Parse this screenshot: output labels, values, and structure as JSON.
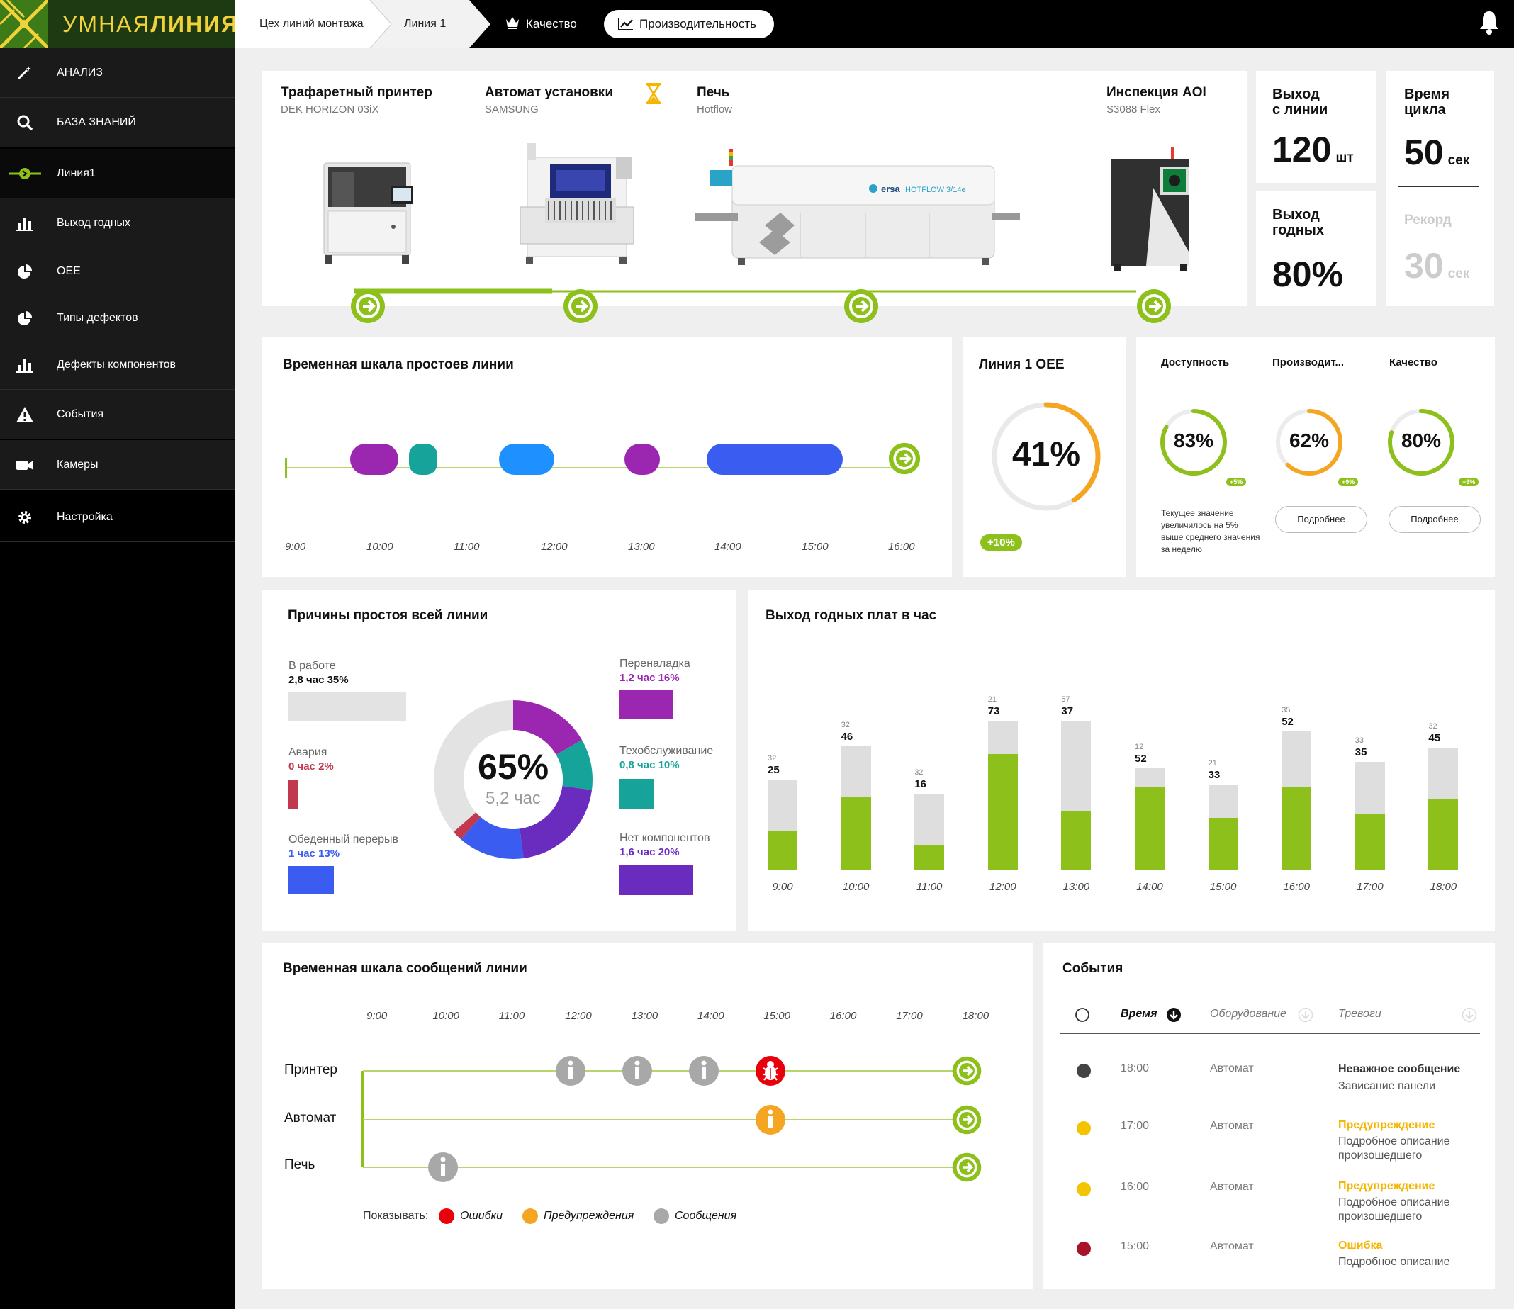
{
  "app": {
    "logo_plain": "УМНАЯ",
    "logo_bold": "ЛИНИЯ"
  },
  "breadcrumb": {
    "shop": "Цех линий монтажа",
    "line": "Линия 1"
  },
  "topnav": {
    "quality": "Качество",
    "performance": "Производительность"
  },
  "sidebar": {
    "items": [
      {
        "label": "АНАЛИЗ",
        "icon": "magic-wand-icon"
      },
      {
        "label": "БАЗА ЗНАНИЙ",
        "icon": "search-icon"
      },
      {
        "label": "Линия1",
        "icon": "line-arrow-icon"
      },
      {
        "label": "Выход годных",
        "icon": "bar-chart-icon"
      },
      {
        "label": "OEE",
        "icon": "pie-chart-icon"
      },
      {
        "label": "Типы дефектов",
        "icon": "pie-chart-icon"
      },
      {
        "label": "Дефекты компонентов",
        "icon": "bar-chart-icon"
      },
      {
        "label": "События",
        "icon": "warning-icon"
      },
      {
        "label": "Камеры",
        "icon": "camera-icon"
      },
      {
        "label": "Настройка",
        "icon": "gear-icon"
      }
    ]
  },
  "line_machines": [
    {
      "name": "Трафаретный принтер",
      "model": "DEK HORIZON 03iX"
    },
    {
      "name": "Автомат установки",
      "model": "SAMSUNG"
    },
    {
      "name": "Печь",
      "model": "Hotflow"
    },
    {
      "name": "Инспекция AOI",
      "model": "S3088 Flex"
    }
  ],
  "oven_brand": {
    "brand": "ersa",
    "model": "HOTFLOW 3/14e"
  },
  "kpi": {
    "line_output_label_1": "Выход",
    "line_output_label_2": "с линии",
    "line_output_value": "120",
    "line_output_unit": "шт",
    "cycle_label_1": "Время",
    "cycle_label_2": "цикла",
    "cycle_value": "50",
    "cycle_unit": "сек",
    "yield_label_1": "Выход",
    "yield_label_2": "годных",
    "yield_value": "80%",
    "record_label": "Рекорд",
    "record_value": "30",
    "record_unit": "сек"
  },
  "downtime_timeline": {
    "title": "Временная шкала простоев линии",
    "times": [
      "9:00",
      "10:00",
      "11:00",
      "12:00",
      "13:00",
      "14:00",
      "15:00",
      "16:00"
    ],
    "segments": [
      {
        "color": "#9b27b0"
      },
      {
        "color": "#16a49a"
      },
      {
        "color": "#1e90ff"
      },
      {
        "color": "#9b27b0"
      },
      {
        "color": "#3b5cf0"
      }
    ]
  },
  "oee": {
    "title": "Линия 1 OEE",
    "value": "41%",
    "fraction": 0.41,
    "delta": "+10%"
  },
  "oee_parts": {
    "items": [
      {
        "label": "Доступность",
        "value": "83%",
        "fraction": 0.83,
        "color": "#8dc01b",
        "delta": "+5%"
      },
      {
        "label": "Производит...",
        "value": "62%",
        "fraction": 0.62,
        "color": "#f4a623",
        "delta": "+9%"
      },
      {
        "label": "Качество",
        "value": "80%",
        "fraction": 0.8,
        "color": "#8dc01b",
        "delta": "+9%"
      }
    ],
    "note": "Текущее значение увеличилось на 5% выше среднего значения за неделю",
    "more_button": "Подробнее"
  },
  "downtime_reasons": {
    "title": "Причины простоя всей линии",
    "center_value": "65%",
    "center_sub": "5,2 час",
    "items": [
      {
        "label": "В работе",
        "value": "2,8 час 35%",
        "color": "#e3e3e3",
        "value_color": "#111",
        "fraction": 0.35
      },
      {
        "label": "Авария",
        "value": "0 час 2%",
        "color": "#c0394f",
        "value_color": "#c0394f",
        "fraction": 0.02
      },
      {
        "label": "Обеденный перерыв",
        "value": "1 час 13%",
        "color": "#3b5cf0",
        "value_color": "#3b5cf0",
        "fraction": 0.13
      },
      {
        "label": "Переналадка",
        "value": "1,2 час 16%",
        "color": "#9b27b0",
        "value_color": "#9b27b0",
        "fraction": 0.16
      },
      {
        "label": "Техобслуживание",
        "value": "0,8 час 10%",
        "color": "#16a49a",
        "value_color": "#16a49a",
        "fraction": 0.1
      },
      {
        "label": "Нет компонентов",
        "value": "1,6 час 20%",
        "color": "#6a2bbf",
        "value_color": "#6a2bbf",
        "fraction": 0.2
      }
    ]
  },
  "chart_data": {
    "type": "bar",
    "title": "Выход годных плат в час",
    "categories": [
      "9:00",
      "10:00",
      "11:00",
      "12:00",
      "13:00",
      "14:00",
      "15:00",
      "16:00",
      "17:00",
      "18:00"
    ],
    "series": [
      {
        "values": [
          25,
          46,
          16,
          73,
          37,
          52,
          33,
          52,
          35,
          45
        ]
      },
      {
        "values": [
          32,
          32,
          32,
          21,
          57,
          12,
          21,
          35,
          33,
          32
        ]
      }
    ]
  },
  "messages_timeline": {
    "title": "Временная шкала сообщений линии",
    "times": [
      "9:00",
      "10:00",
      "11:00",
      "12:00",
      "13:00",
      "14:00",
      "15:00",
      "16:00",
      "17:00",
      "18:00"
    ],
    "rows": [
      "Принтер",
      "Автомат",
      "Печь"
    ],
    "show_label": "Показывать:",
    "legend": [
      {
        "label": "Ошибки",
        "color": "#e8000b"
      },
      {
        "label": "Предупреждения",
        "color": "#f4a623"
      },
      {
        "label": "Сообщения",
        "color": "#a8a8a8"
      }
    ]
  },
  "events": {
    "title": "События",
    "columns": [
      "Время",
      "Оборудование",
      "Тревоги"
    ],
    "rows": [
      {
        "dot": "#444444",
        "time": "18:00",
        "equipment": "Автомат",
        "title": "Неважное сообщение",
        "title_color": "#333333",
        "desc": "Зависание панели"
      },
      {
        "dot": "#f4c400",
        "time": "17:00",
        "equipment": "Автомат",
        "title": "Предупреждение",
        "title_color": "#f4b400",
        "desc": "Подробное описание произошедшего"
      },
      {
        "dot": "#f4c400",
        "time": "16:00",
        "equipment": "Автомат",
        "title": "Предупреждение",
        "title_color": "#f4b400",
        "desc": "Подробное описание произошедшего"
      },
      {
        "dot": "#a8132a",
        "time": "15:00",
        "equipment": "Автомат",
        "title": "Ошибка",
        "title_color": "#f4b400",
        "desc": "Подробное описание"
      }
    ]
  }
}
